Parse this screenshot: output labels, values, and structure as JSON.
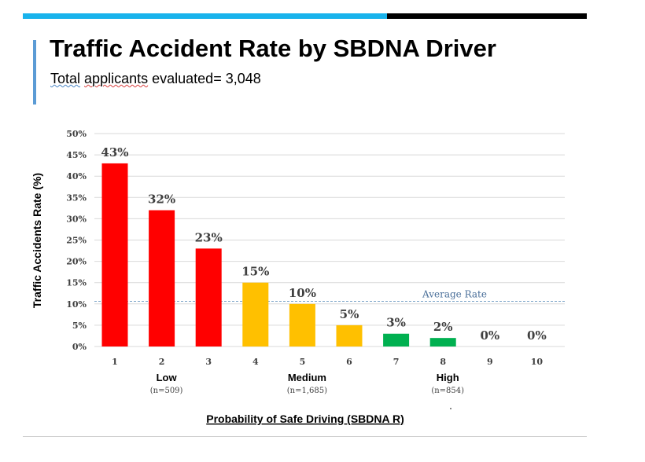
{
  "header": {
    "title": "Traffic Accident Rate by SBDNA Driver",
    "subtitle_word1": "Total",
    "subtitle_word2": "applicants",
    "subtitle_rest": "evaluated= 3,048"
  },
  "colors": {
    "top_bar_left": "#19b3ec",
    "top_bar_right": "#000000",
    "accent": "#5b9bd5",
    "low": "#ff0000",
    "medium": "#ffc000",
    "high": "#00b050",
    "average_line": "#7ea6c9"
  },
  "chart_data": {
    "type": "bar",
    "categories": [
      "1",
      "2",
      "3",
      "4",
      "5",
      "6",
      "7",
      "8",
      "9",
      "10"
    ],
    "values": [
      43,
      32,
      23,
      15,
      10,
      5,
      3,
      2,
      0,
      0
    ],
    "data_labels": [
      "43%",
      "32%",
      "23%",
      "15%",
      "10%",
      "5%",
      "3%",
      "2%",
      "0%",
      "0%"
    ],
    "bar_colors": [
      "#ff0000",
      "#ff0000",
      "#ff0000",
      "#ffc000",
      "#ffc000",
      "#ffc000",
      "#00b050",
      "#00b050",
      "#00b050",
      "#00b050"
    ],
    "ylabel": "Traffic Accidents Rate (%)",
    "xlabel": "Probability of Safe Driving (SBDNA R)",
    "ylim": [
      0,
      50
    ],
    "yticks": [
      0,
      5,
      10,
      15,
      20,
      25,
      30,
      35,
      40,
      45,
      50
    ],
    "ytick_labels": [
      "0%",
      "5%",
      "10%",
      "15%",
      "20%",
      "25%",
      "30%",
      "35%",
      "40%",
      "45%",
      "50%"
    ],
    "grid": true,
    "average_rate": {
      "label": "Average Rate",
      "value": 10.6
    },
    "groups": [
      {
        "label": "Low",
        "count": "(n=509)",
        "center_category": 2
      },
      {
        "label": "Medium",
        "count": "(n=1,685)",
        "center_category": 5
      },
      {
        "label": "High",
        "count": "(n=854)",
        "center_category": 8
      }
    ]
  }
}
